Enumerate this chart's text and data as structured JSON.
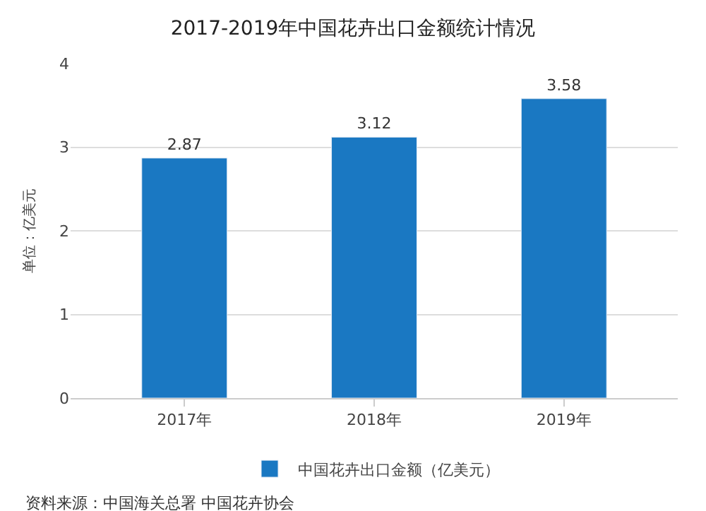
{
  "chart_data": {
    "type": "bar",
    "title": "2017-2019年中国花卉出口金额统计情况",
    "ylabel": "单位：亿美元",
    "categories": [
      "2017年",
      "2018年",
      "2019年"
    ],
    "series": [
      {
        "name": "中国花卉出口金额（亿美元）",
        "color": "#1a78c2",
        "values": [
          2.87,
          3.12,
          3.58
        ]
      }
    ],
    "data_labels": true,
    "ylim": [
      0,
      4
    ],
    "yticks": [
      0,
      1,
      2,
      3,
      4
    ],
    "grid": "y",
    "legend": "bottom",
    "annotations": [
      "资料来源：中国海关总署 中国花卉协会"
    ]
  }
}
